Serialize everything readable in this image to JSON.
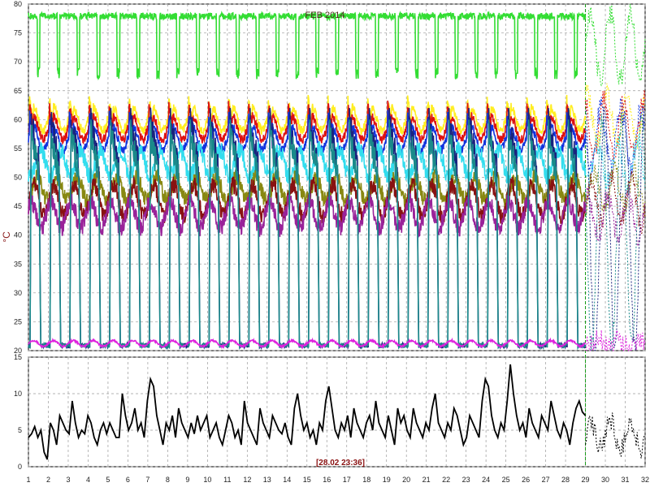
{
  "chart_data": {
    "type": "line",
    "title": "FEB 2014",
    "ylabel": "°C",
    "timestamp": "[28.02 23:36]",
    "grid": true,
    "x_range": [
      1,
      32
    ],
    "x_ticks": [
      "1",
      "2",
      "3",
      "4",
      "5",
      "6",
      "7",
      "8",
      "9",
      "10",
      "11",
      "12",
      "13",
      "14",
      "15",
      "16",
      "17",
      "18",
      "19",
      "20",
      "21",
      "22",
      "23",
      "24",
      "25",
      "26",
      "27",
      "28",
      "29",
      "30",
      "31",
      "32"
    ],
    "y_top_range": [
      20,
      80
    ],
    "y_top_ticks": [
      "20",
      "25",
      "30",
      "35",
      "40",
      "45",
      "50",
      "55",
      "60",
      "65",
      "70",
      "75",
      "80"
    ],
    "y_bottom_range": [
      0,
      15
    ],
    "y_bottom_ticks": [
      "0",
      "5",
      "10",
      "15"
    ],
    "current_day_marker": 29,
    "series": [
      {
        "color": "#33dd33",
        "panel": "top",
        "low": 67,
        "high": 78.5,
        "pattern": "daily-dips"
      },
      {
        "color": "#ffee22",
        "panel": "top",
        "low": 56,
        "high": 64.5,
        "pattern": "daily-peaks"
      },
      {
        "color": "#dd1111",
        "panel": "top",
        "low": 54,
        "high": 63.5,
        "pattern": "daily-peaks"
      },
      {
        "color": "#1133dd",
        "panel": "top",
        "low": 52,
        "high": 62,
        "pattern": "daily-peaks"
      },
      {
        "color": "#33ddee",
        "panel": "top",
        "low": 49,
        "high": 56,
        "pattern": "noisy"
      },
      {
        "color": "#888811",
        "panel": "top",
        "low": 45,
        "high": 51,
        "pattern": "noisy"
      },
      {
        "color": "#881111",
        "panel": "top",
        "low": 42,
        "high": 50,
        "pattern": "noisy"
      },
      {
        "color": "#992299",
        "panel": "top",
        "low": 40,
        "high": 47,
        "pattern": "noisy"
      },
      {
        "color": "#1a237e",
        "panel": "top",
        "low": 20.5,
        "high": 62,
        "pattern": "daily-spikes"
      },
      {
        "color": "#1a8a8a",
        "panel": "top",
        "low": 20.5,
        "high": 60,
        "pattern": "daily-spikes"
      },
      {
        "color": "#dd22dd",
        "panel": "top",
        "low": 20.5,
        "high": 22,
        "pattern": "flat"
      },
      {
        "color": "#000000",
        "panel": "bottom",
        "values": [
          4,
          4.5,
          5.5,
          4,
          5,
          2,
          1,
          6,
          5,
          3,
          7,
          6,
          5,
          4.5,
          9,
          6,
          4,
          5,
          4.5,
          7,
          6,
          4,
          3,
          5,
          6,
          4.5,
          6,
          5,
          4,
          4,
          10,
          7,
          5,
          6,
          8,
          5,
          6,
          4,
          9,
          12,
          11,
          7,
          5,
          3,
          6,
          5,
          7,
          4,
          8,
          6,
          5,
          4,
          6,
          4.5,
          7,
          5,
          6,
          7,
          4,
          5,
          6,
          4,
          3,
          5,
          7,
          6,
          4,
          5,
          3,
          9,
          6,
          5,
          4,
          3,
          8,
          6,
          5,
          4,
          7,
          6,
          5,
          4.5,
          6,
          4,
          3,
          8,
          10,
          7,
          5,
          6,
          4,
          5,
          3,
          6,
          5,
          9,
          11,
          8,
          5,
          4,
          6,
          5,
          7,
          4,
          8,
          6,
          5,
          4,
          6,
          7,
          5,
          9,
          6,
          5,
          4,
          7,
          5,
          3,
          8,
          6,
          7,
          5,
          4,
          8,
          6,
          5,
          4,
          6,
          5,
          8,
          10,
          6,
          5,
          4,
          6,
          5,
          8,
          7,
          5,
          3,
          4,
          7,
          6,
          5,
          4,
          9,
          12,
          11,
          7,
          5,
          4,
          6,
          5,
          9,
          14,
          10,
          7,
          5,
          6,
          4,
          8,
          6,
          5,
          4,
          7,
          6,
          5,
          9,
          7,
          5,
          4,
          6,
          5,
          3,
          6,
          8,
          9,
          7.5,
          7
        ]
      }
    ]
  }
}
